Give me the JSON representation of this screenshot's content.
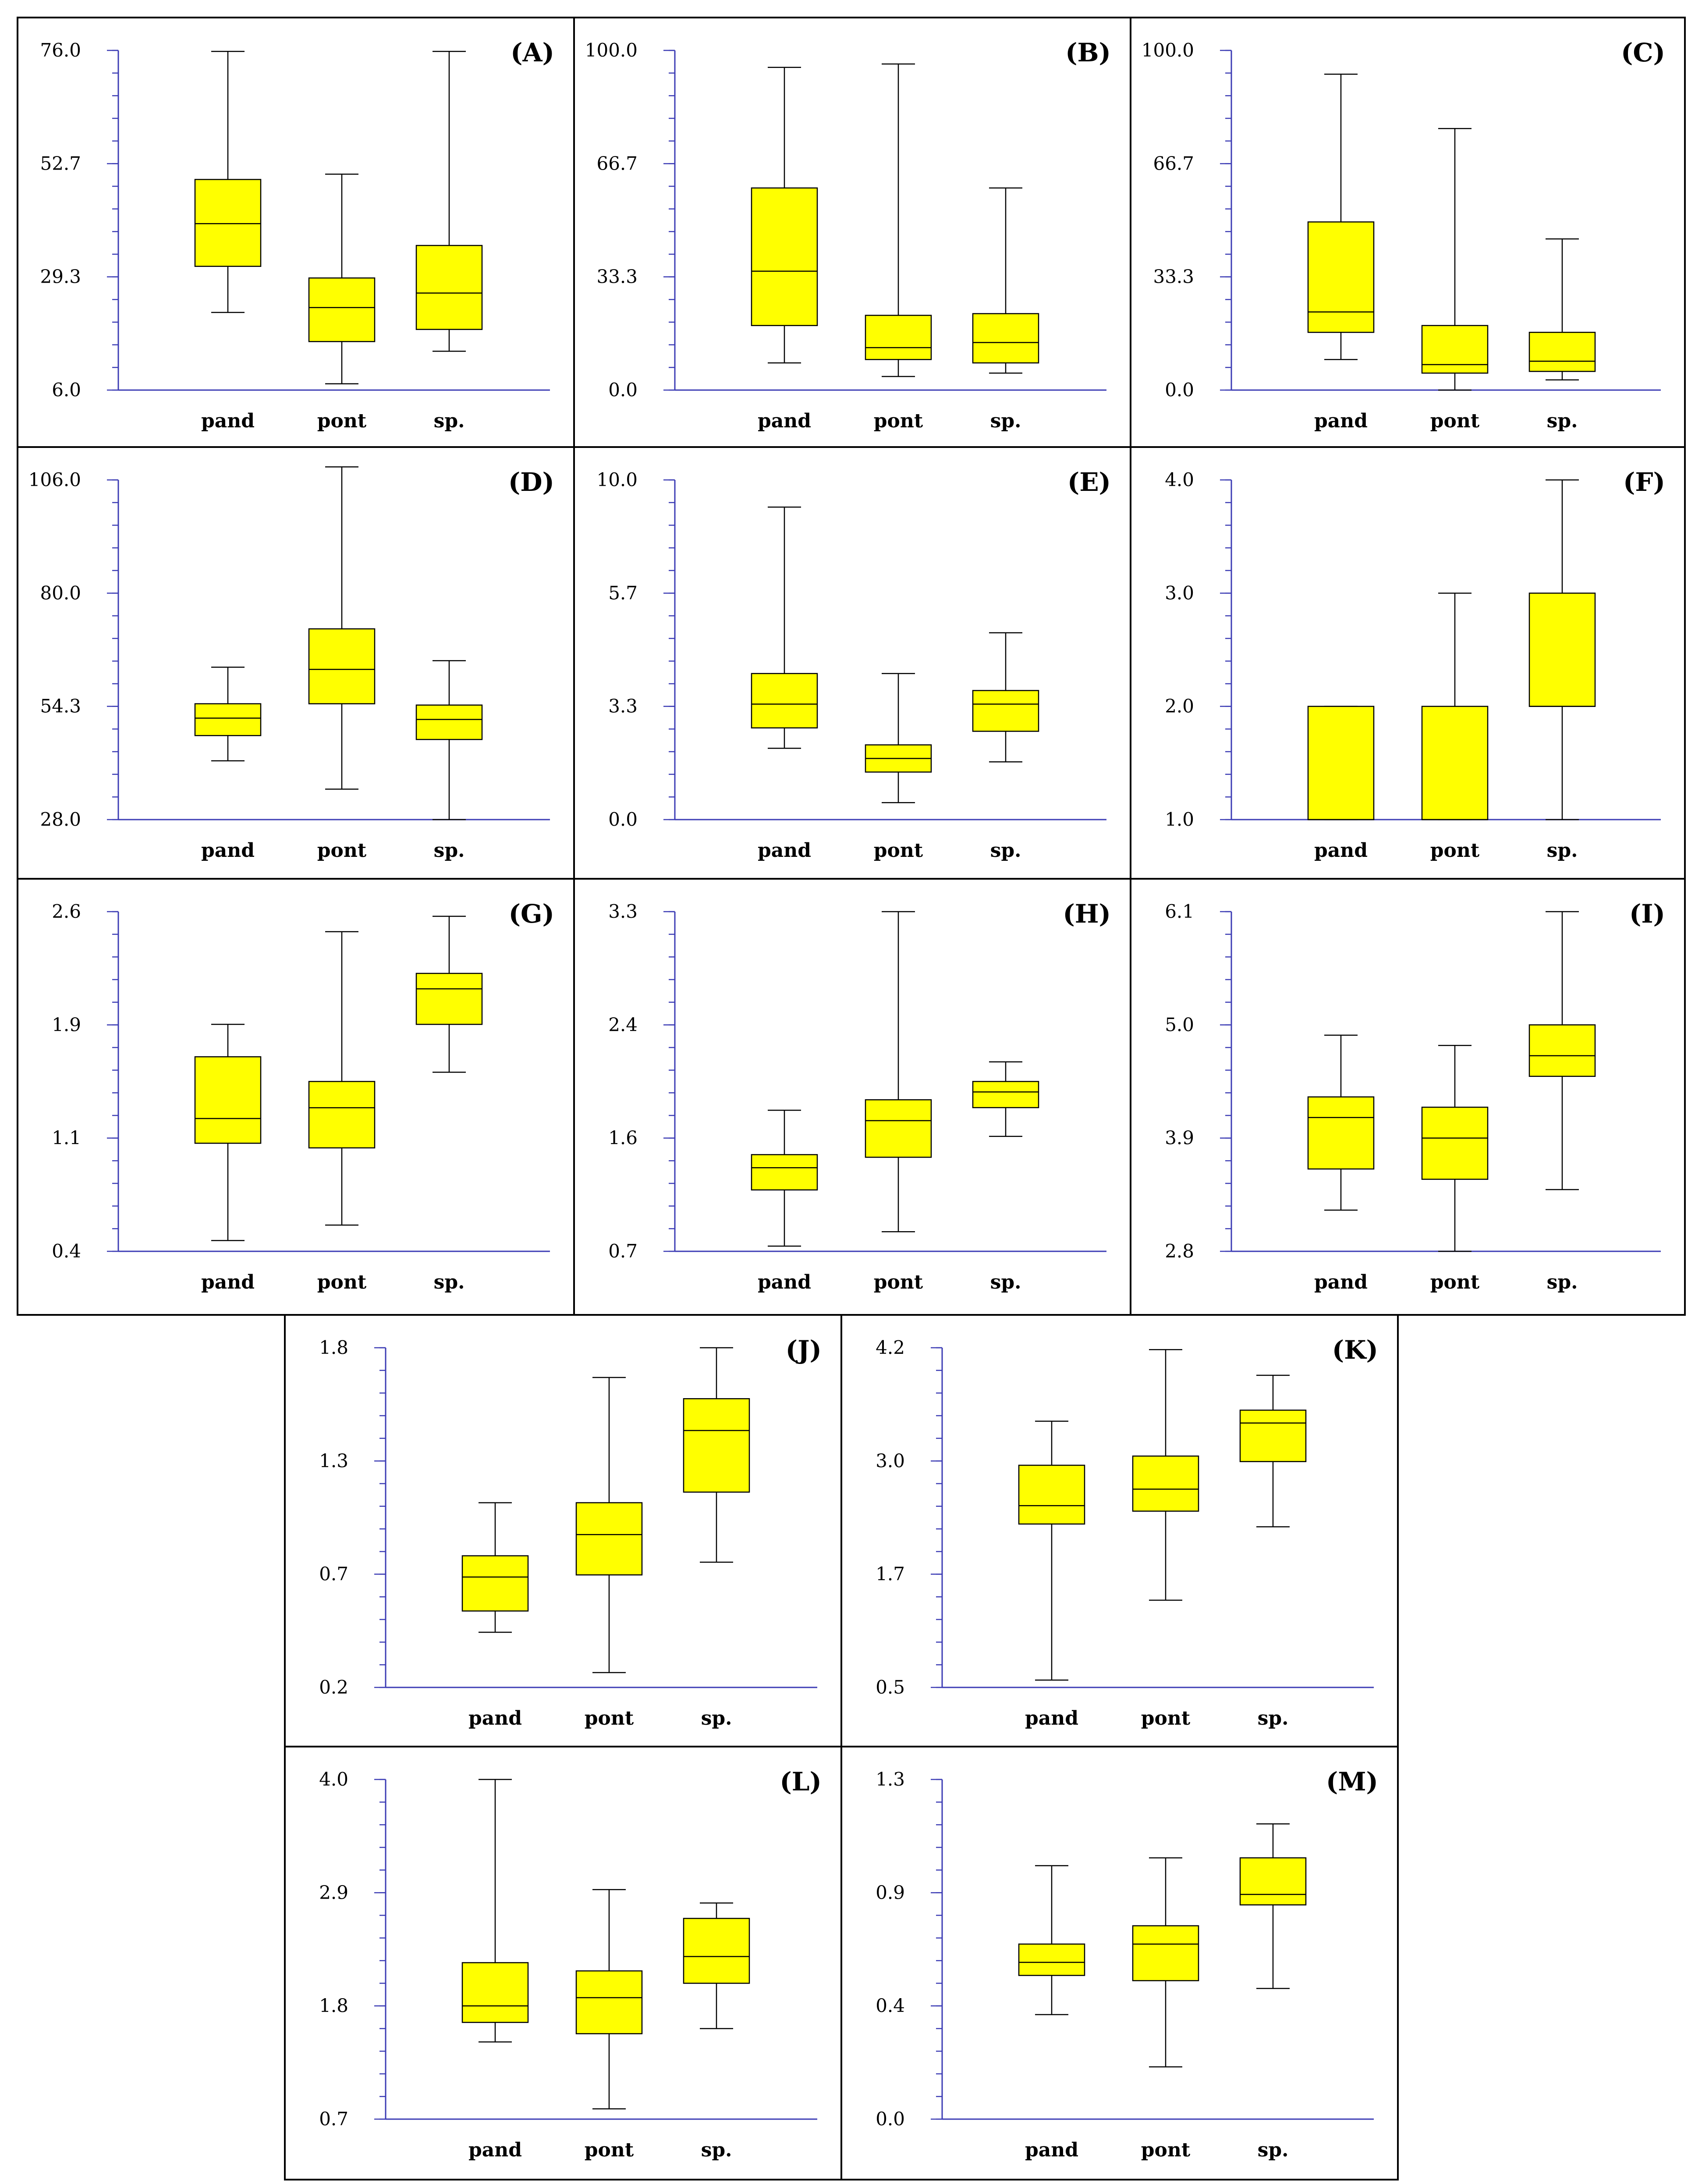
{
  "chart_data": [
    {
      "type": "box",
      "label": "(A)",
      "yticks": [
        "76.0",
        "52.7",
        "29.3",
        "6.0"
      ],
      "ylim": [
        6.0,
        76.0
      ],
      "categories": [
        "pand",
        "pont",
        "sp."
      ],
      "boxes": [
        {
          "min": 22.0,
          "q1": 31.5,
          "median": 40.3,
          "q3": 49.4,
          "max": 75.8
        },
        {
          "min": 7.3,
          "q1": 16.0,
          "median": 23.0,
          "q3": 29.1,
          "max": 50.5
        },
        {
          "min": 14.0,
          "q1": 18.5,
          "median": 26.0,
          "q3": 35.8,
          "max": 75.8
        }
      ]
    },
    {
      "type": "box",
      "label": "(B)",
      "yticks": [
        "100.0",
        "66.7",
        "33.3",
        "0.0"
      ],
      "ylim": [
        0.0,
        100.0
      ],
      "categories": [
        "pand",
        "pont",
        "sp."
      ],
      "boxes": [
        {
          "min": 8.0,
          "q1": 19.0,
          "median": 35.0,
          "q3": 59.5,
          "max": 95.0
        },
        {
          "min": 4.0,
          "q1": 9.0,
          "median": 12.5,
          "q3": 22.0,
          "max": 96.0
        },
        {
          "min": 5.0,
          "q1": 8.0,
          "median": 14.0,
          "q3": 22.5,
          "max": 59.5
        }
      ]
    },
    {
      "type": "box",
      "label": "(C)",
      "yticks": [
        "100.0",
        "66.7",
        "33.3",
        "0.0"
      ],
      "ylim": [
        0.0,
        100.0
      ],
      "categories": [
        "pand",
        "pont",
        "sp."
      ],
      "boxes": [
        {
          "min": 9.0,
          "q1": 17.0,
          "median": 23.0,
          "q3": 49.5,
          "max": 93.0
        },
        {
          "min": 0.0,
          "q1": 5.0,
          "median": 7.5,
          "q3": 19.0,
          "max": 77.0
        },
        {
          "min": 3.0,
          "q1": 5.5,
          "median": 8.5,
          "q3": 17.0,
          "max": 44.5
        }
      ]
    },
    {
      "type": "box",
      "label": "(D)",
      "yticks": [
        "106.0",
        "80.0",
        "54.3",
        "28.0"
      ],
      "ylim": [
        28.0,
        106.0
      ],
      "categories": [
        "pand",
        "pont",
        "sp."
      ],
      "boxes": [
        {
          "min": 41.5,
          "q1": 47.3,
          "median": 51.3,
          "q3": 54.6,
          "max": 63.0
        },
        {
          "min": 35.0,
          "q1": 54.6,
          "median": 62.5,
          "q3": 71.8,
          "max": 109.0
        },
        {
          "min": 28.0,
          "q1": 46.4,
          "median": 51.0,
          "q3": 54.3,
          "max": 64.5
        }
      ]
    },
    {
      "type": "box",
      "label": "(E)",
      "yticks": [
        "10.0",
        "5.7",
        "3.3",
        "0.0"
      ],
      "ylim": [
        0.0,
        10.0
      ],
      "categories": [
        "pand",
        "pont",
        "sp."
      ],
      "boxes": [
        {
          "min": 2.1,
          "q1": 2.7,
          "median": 3.4,
          "q3": 4.3,
          "max": 9.2
        },
        {
          "min": 0.5,
          "q1": 1.4,
          "median": 1.8,
          "q3": 2.2,
          "max": 4.3
        },
        {
          "min": 1.7,
          "q1": 2.6,
          "median": 3.4,
          "q3": 3.8,
          "max": 5.5
        }
      ]
    },
    {
      "type": "box",
      "label": "(F)",
      "yticks": [
        "4.0",
        "3.0",
        "2.0",
        "1.0"
      ],
      "ylim": [
        1.0,
        4.0
      ],
      "categories": [
        "pand",
        "pont",
        "sp."
      ],
      "boxes": [
        {
          "min": 1.0,
          "q1": 1.0,
          "median": 1.0,
          "q3": 2.0,
          "max": 2.0
        },
        {
          "min": 1.0,
          "q1": 1.0,
          "median": 1.0,
          "q3": 2.0,
          "max": 3.0
        },
        {
          "min": 1.0,
          "q1": 2.0,
          "median": 2.0,
          "q3": 3.0,
          "max": 4.0
        }
      ]
    },
    {
      "type": "box",
      "label": "(G)",
      "yticks": [
        "2.6",
        "1.9",
        "1.1",
        "0.4"
      ],
      "ylim": [
        0.4,
        2.6
      ],
      "categories": [
        "pand",
        "pont",
        "sp."
      ],
      "boxes": [
        {
          "min": 0.47,
          "q1": 1.1,
          "median": 1.26,
          "q3": 1.66,
          "max": 1.87
        },
        {
          "min": 0.57,
          "q1": 1.07,
          "median": 1.33,
          "q3": 1.5,
          "max": 2.47
        },
        {
          "min": 1.56,
          "q1": 1.87,
          "median": 2.1,
          "q3": 2.2,
          "max": 2.57
        }
      ]
    },
    {
      "type": "box",
      "label": "(H)",
      "yticks": [
        "3.3",
        "2.4",
        "1.6",
        "0.7"
      ],
      "ylim": [
        0.7,
        3.3
      ],
      "categories": [
        "pand",
        "pont",
        "sp."
      ],
      "boxes": [
        {
          "min": 0.74,
          "q1": 1.17,
          "median": 1.34,
          "q3": 1.44,
          "max": 1.78
        },
        {
          "min": 0.85,
          "q1": 1.42,
          "median": 1.7,
          "q3": 1.86,
          "max": 3.3
        },
        {
          "min": 1.58,
          "q1": 1.8,
          "median": 1.92,
          "q3": 2.0,
          "max": 2.15
        }
      ]
    },
    {
      "type": "box",
      "label": "(I)",
      "yticks": [
        "6.1",
        "5.0",
        "3.9",
        "2.8"
      ],
      "ylim": [
        2.8,
        6.1
      ],
      "categories": [
        "pand",
        "pont",
        "sp."
      ],
      "boxes": [
        {
          "min": 3.2,
          "q1": 3.6,
          "median": 4.1,
          "q3": 4.3,
          "max": 4.9
        },
        {
          "min": 2.8,
          "q1": 3.5,
          "median": 3.9,
          "q3": 4.2,
          "max": 4.8
        },
        {
          "min": 3.4,
          "q1": 4.5,
          "median": 4.7,
          "q3": 5.0,
          "max": 6.1
        }
      ]
    },
    {
      "type": "box",
      "label": "(J)",
      "yticks": [
        "1.8",
        "1.3",
        "0.7",
        "0.2"
      ],
      "ylim": [
        0.2,
        1.8
      ],
      "categories": [
        "pand",
        "pont",
        "sp."
      ],
      "boxes": [
        {
          "min": 0.46,
          "q1": 0.56,
          "median": 0.72,
          "q3": 0.82,
          "max": 1.07
        },
        {
          "min": 0.27,
          "q1": 0.73,
          "median": 0.92,
          "q3": 1.07,
          "max": 1.66
        },
        {
          "min": 0.79,
          "q1": 1.12,
          "median": 1.41,
          "q3": 1.56,
          "max": 1.8
        }
      ]
    },
    {
      "type": "box",
      "label": "(K)",
      "yticks": [
        "4.2",
        "3.0",
        "1.7",
        "0.5"
      ],
      "ylim": [
        0.5,
        4.2
      ],
      "categories": [
        "pand",
        "pont",
        "sp."
      ],
      "boxes": [
        {
          "min": 0.58,
          "q1": 2.28,
          "median": 2.48,
          "q3": 2.92,
          "max": 3.4
        },
        {
          "min": 1.45,
          "q1": 2.42,
          "median": 2.66,
          "q3": 3.02,
          "max": 4.18
        },
        {
          "min": 2.25,
          "q1": 2.96,
          "median": 3.38,
          "q3": 3.52,
          "max": 3.9
        }
      ]
    },
    {
      "type": "box",
      "label": "(L)",
      "yticks": [
        "4.0",
        "2.9",
        "1.8",
        "0.7"
      ],
      "ylim": [
        0.7,
        4.0
      ],
      "categories": [
        "pand",
        "pont",
        "sp."
      ],
      "boxes": [
        {
          "min": 1.45,
          "q1": 1.64,
          "median": 1.8,
          "q3": 2.22,
          "max": 4.0
        },
        {
          "min": 0.8,
          "q1": 1.53,
          "median": 1.88,
          "q3": 2.14,
          "max": 2.93
        },
        {
          "min": 1.58,
          "q1": 2.02,
          "median": 2.28,
          "q3": 2.65,
          "max": 2.8
        }
      ]
    },
    {
      "type": "box",
      "label": "(M)",
      "yticks": [
        "1.3",
        "0.9",
        "0.4",
        "0.0"
      ],
      "ylim": [
        0.0,
        1.3
      ],
      "categories": [
        "pand",
        "pont",
        "sp."
      ],
      "boxes": [
        {
          "min": 0.4,
          "q1": 0.55,
          "median": 0.6,
          "q3": 0.67,
          "max": 0.97
        },
        {
          "min": 0.2,
          "q1": 0.53,
          "median": 0.67,
          "q3": 0.74,
          "max": 1.0
        },
        {
          "min": 0.5,
          "q1": 0.82,
          "median": 0.86,
          "q3": 1.0,
          "max": 1.13
        }
      ]
    }
  ]
}
